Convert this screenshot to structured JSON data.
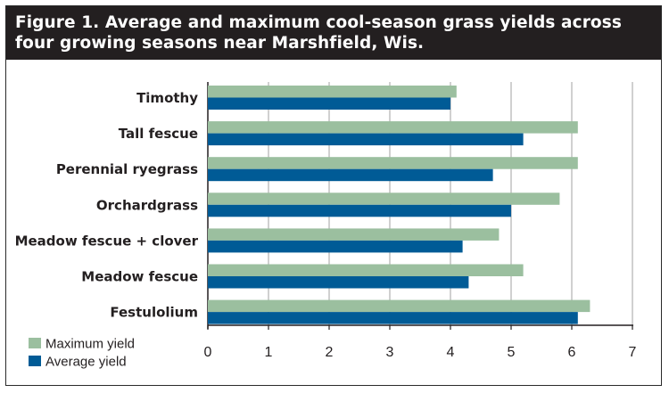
{
  "title": "Figure 1. Average and maximum cool-season grass yields across four growing seasons near Marshfield, Wis.",
  "colors": {
    "maximum": "#9bbf9f",
    "average": "#005b96",
    "grid": "#a0a0a0",
    "title_bg": "#231f20"
  },
  "chart_data": {
    "type": "bar",
    "orientation": "horizontal",
    "title": "Figure 1. Average and maximum cool-season grass yields across four growing seasons near Marshfield, Wis.",
    "categories": [
      "Timothy",
      "Tall fescue",
      "Perennial ryegrass",
      "Orchardgrass",
      "Meadow fescue + clover",
      "Meadow fescue",
      "Festulolium"
    ],
    "series": [
      {
        "name": "Maximum yield",
        "color": "#9bbf9f",
        "values": [
          4.1,
          6.1,
          6.1,
          5.8,
          4.8,
          5.2,
          6.3
        ]
      },
      {
        "name": "Average yield",
        "color": "#005b96",
        "values": [
          4.0,
          5.2,
          4.7,
          5.0,
          4.2,
          4.3,
          6.1
        ]
      }
    ],
    "xlim": [
      0,
      7
    ],
    "xticks": [
      "0",
      "1",
      "2",
      "3",
      "4",
      "5",
      "6",
      "7"
    ],
    "xlabel": "",
    "ylabel": "",
    "grid": "vertical",
    "legend_position": "bottom-left"
  }
}
